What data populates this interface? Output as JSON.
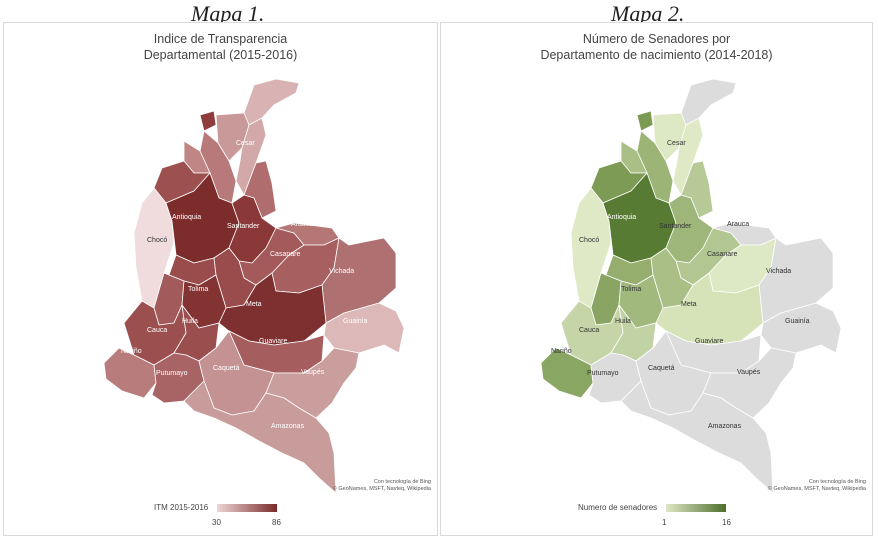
{
  "captions": {
    "left": "Mapa 1.",
    "right": "Mapa 2."
  },
  "map1": {
    "title_line1": "Indice de Transparencia",
    "title_line2": "Departamental (2015-2016)",
    "attribution_line1": "Con tecnología de Bing",
    "attribution_line2": "© GeoNames, MSFT, Navteq, Wikipedia",
    "legend": {
      "title": "ITM 2015-2016",
      "min": "30",
      "max": "86",
      "color_low": "#efd6d6",
      "color_high": "#7a2a2a"
    },
    "labels": {
      "cesar": "Cesar",
      "antioquia": "Antioquia",
      "santander": "Santander",
      "arauca": "Arauca",
      "choco": "Chocó",
      "casanare": "Casanare",
      "vichada": "Vichada",
      "tolima": "Tolima",
      "meta": "Meta",
      "guainia": "Guainía",
      "huila": "Huila",
      "cauca": "Cauca",
      "guaviare": "Guaviare",
      "narino": "Nariño",
      "caqueta": "Caquetá",
      "vaupes": "Vaupés",
      "putumayo": "Putumayo",
      "amazonas": "Amazonas"
    }
  },
  "map2": {
    "title_line1": "Número de Senadores por",
    "title_line2": "Departamento de nacimiento (2014-2018)",
    "attribution_line1": "Con tecnología de Bing",
    "attribution_line2": "© GeoNames, MSFT, Navteq, Wikipedia",
    "legend": {
      "title": "Numero de senadores",
      "min": "1",
      "max": "16",
      "color_low": "#dfe8c4",
      "color_high": "#4e6e2e"
    },
    "labels": {
      "cesar": "Cesar",
      "antioquia": "Antioquia",
      "santander": "Santander",
      "arauca": "Arauca",
      "choco": "Chocó",
      "casanare": "Casanare",
      "vichada": "Vichada",
      "tolima": "Tolima",
      "meta": "Meta",
      "guainia": "Guainía",
      "huila": "Huila",
      "cauca": "Cauca",
      "guaviare": "Guaviare",
      "narino": "Nariño",
      "caqueta": "Caquetá",
      "vaupes": "Vaupés",
      "putumayo": "Putumayo",
      "amazonas": "Amazonas"
    }
  },
  "colors": {
    "no_data": "#dcdcdc",
    "border": "#ffffff"
  }
}
